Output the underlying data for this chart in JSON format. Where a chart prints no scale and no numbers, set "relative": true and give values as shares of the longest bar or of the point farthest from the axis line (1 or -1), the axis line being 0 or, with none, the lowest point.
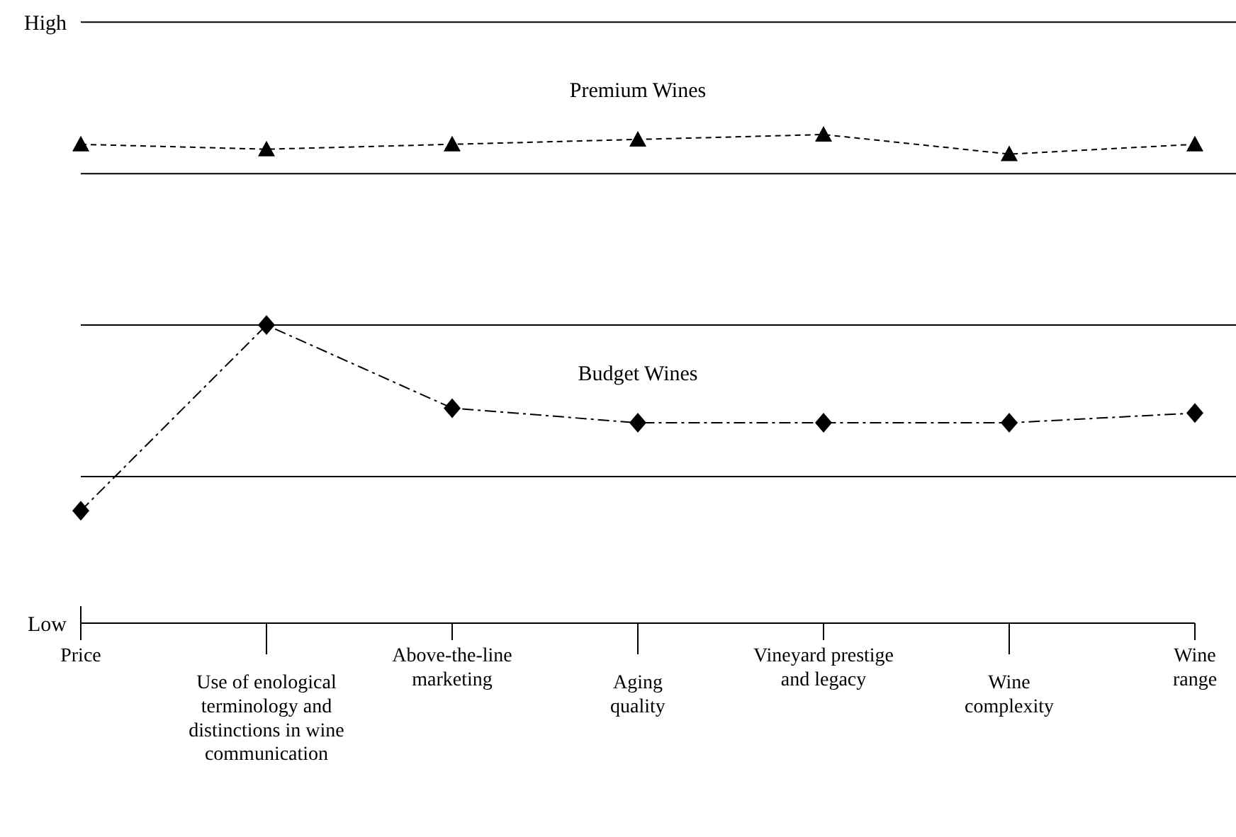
{
  "chart_data": {
    "type": "line",
    "relative": true,
    "categories": [
      "Price",
      "Use of enological\nterminology and\ndistinctions in wine\ncommunication",
      "Above-the-line\nmarketing",
      "Aging\nquality",
      "Vineyard prestige\nand legacy",
      "Wine\ncomplexity",
      "Wine\nrange"
    ],
    "annotations": [
      "Low"
    ],
    "series": [
      {
        "name": "Premium Wines",
        "color": "#000000",
        "marker": "triangle",
        "line_style": "dashed",
        "values": [
          0.98,
          0.97,
          0.98,
          0.99,
          1,
          0.96,
          0.98
        ]
      },
      {
        "name": "Budget Wines",
        "color": "#000000",
        "marker": "diamond",
        "line_style": "dashdot",
        "values": [
          0.23,
          0.61,
          0.44,
          0.41,
          0.41,
          0.41,
          0.43
        ]
      }
    ],
    "ref_lines": [
      {
        "axis": "y",
        "value": 1.23,
        "label": "High"
      },
      {
        "axis": "y",
        "value": 0.92
      },
      {
        "axis": "y",
        "value": 0.61
      },
      {
        "axis": "y",
        "value": 0.3
      }
    ]
  }
}
